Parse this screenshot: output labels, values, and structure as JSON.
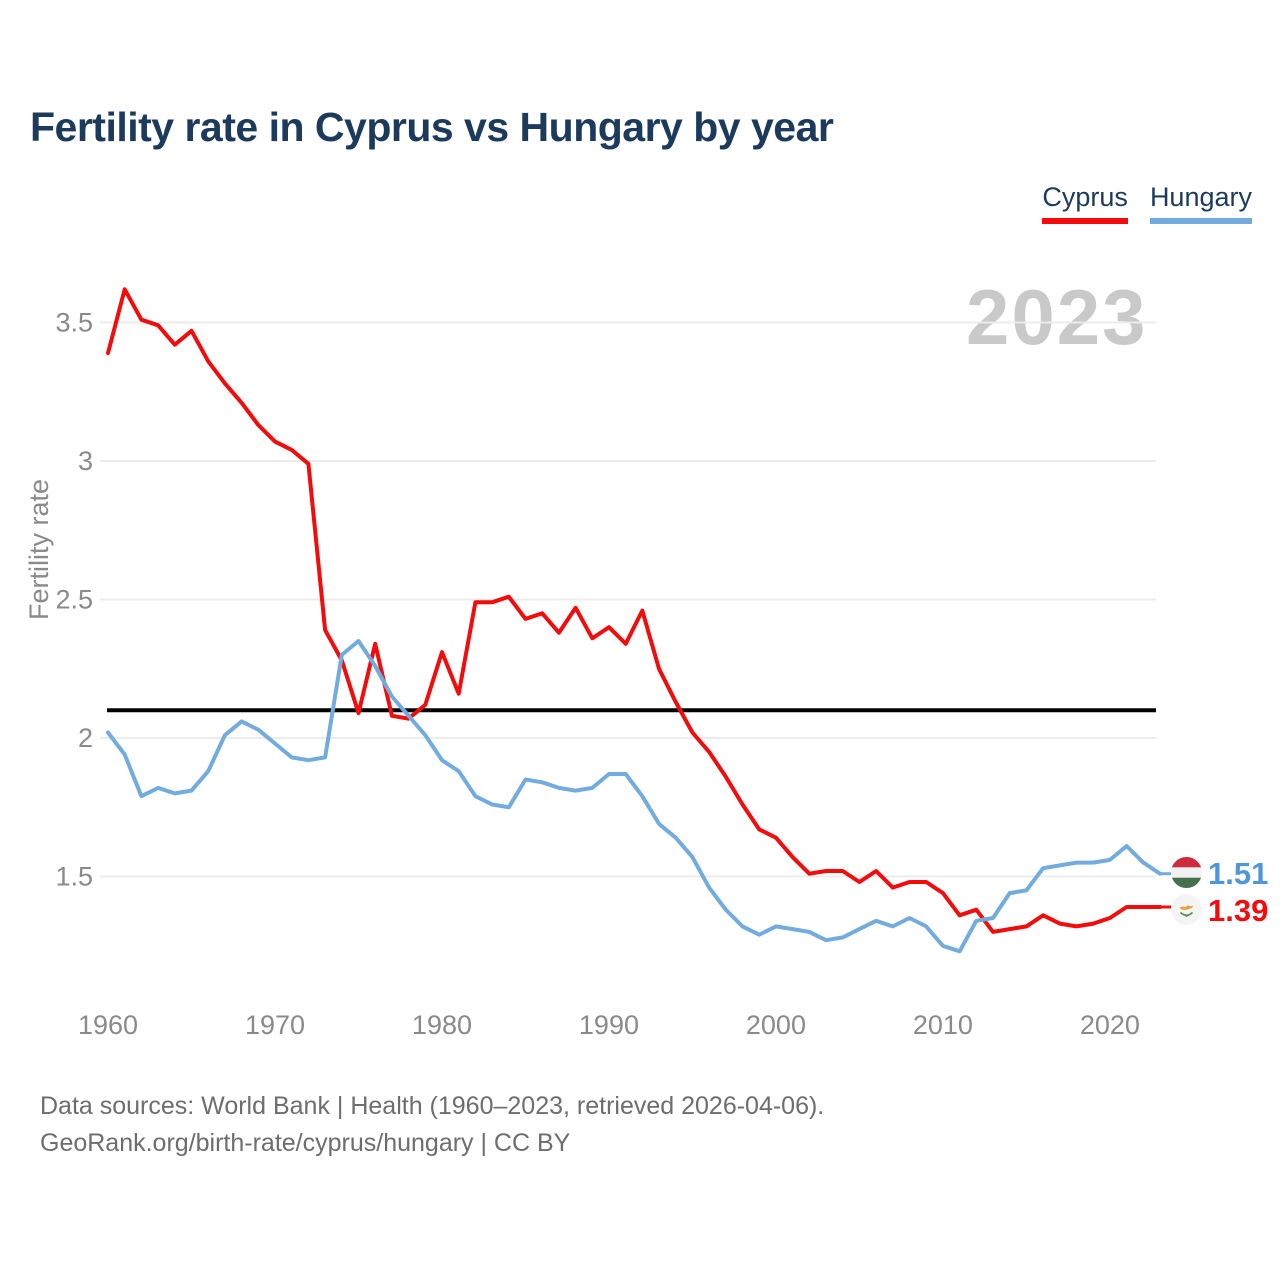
{
  "header": {
    "title": "Fertility rate in Cyprus vs Hungary by year"
  },
  "legend": {
    "items": [
      {
        "label": "Cyprus",
        "color": "#f40b0b"
      },
      {
        "label": "Hungary",
        "color": "#72acdf"
      }
    ]
  },
  "watermark": "2023",
  "axes": {
    "y_label": "Fertility rate"
  },
  "end_labels": [
    {
      "series": "Hungary",
      "value": "1.51",
      "color": "#4e97da",
      "flag": "hungary-flag-icon"
    },
    {
      "series": "Cyprus",
      "value": "1.39",
      "color": "#f40b0b",
      "flag": "cyprus-flag-icon"
    }
  ],
  "footer": {
    "line1": "Data sources: World Bank | Health (1960–2023, retrieved 2026-04-06).",
    "line2": "GeoRank.org/birth-rate/cyprus/hungary | CC BY"
  },
  "chart_data": {
    "type": "line",
    "title": "Fertility rate in Cyprus vs Hungary by year",
    "xlabel": "",
    "ylabel": "Fertility rate",
    "xlim": [
      1960,
      2023
    ],
    "ylim": [
      1.02,
      3.64
    ],
    "x_ticks": [
      1960,
      1970,
      1980,
      1990,
      2000,
      2010,
      2020
    ],
    "y_ticks": [
      1.5,
      2,
      2.5,
      3,
      3.5
    ],
    "grid": "horizontal",
    "legend_position": "top-right",
    "reference_line": {
      "value": 2.1,
      "color": "#000000"
    },
    "x": [
      1960,
      1961,
      1962,
      1963,
      1964,
      1965,
      1966,
      1967,
      1968,
      1969,
      1970,
      1971,
      1972,
      1973,
      1974,
      1975,
      1976,
      1977,
      1978,
      1979,
      1980,
      1981,
      1982,
      1983,
      1984,
      1985,
      1986,
      1987,
      1988,
      1989,
      1990,
      1991,
      1992,
      1993,
      1994,
      1995,
      1996,
      1997,
      1998,
      1999,
      2000,
      2001,
      2002,
      2003,
      2004,
      2005,
      2006,
      2007,
      2008,
      2009,
      2010,
      2011,
      2012,
      2013,
      2014,
      2015,
      2016,
      2017,
      2018,
      2019,
      2020,
      2021,
      2022,
      2023
    ],
    "series": [
      {
        "name": "Cyprus",
        "color": "#f40b0b",
        "values": [
          3.39,
          3.62,
          3.51,
          3.49,
          3.42,
          3.47,
          3.36,
          3.28,
          3.21,
          3.13,
          3.07,
          3.04,
          2.99,
          2.39,
          2.28,
          2.09,
          2.34,
          2.08,
          2.07,
          2.12,
          2.31,
          2.16,
          2.49,
          2.49,
          2.51,
          2.43,
          2.45,
          2.38,
          2.47,
          2.36,
          2.4,
          2.34,
          2.46,
          2.25,
          2.13,
          2.02,
          1.95,
          1.86,
          1.76,
          1.67,
          1.64,
          1.57,
          1.51,
          1.52,
          1.52,
          1.48,
          1.52,
          1.46,
          1.48,
          1.48,
          1.44,
          1.36,
          1.38,
          1.3,
          1.31,
          1.32,
          1.36,
          1.33,
          1.32,
          1.33,
          1.35,
          1.39,
          1.39,
          1.39
        ]
      },
      {
        "name": "Hungary",
        "color": "#72acdf",
        "values": [
          2.02,
          1.94,
          1.79,
          1.82,
          1.8,
          1.81,
          1.88,
          2.01,
          2.06,
          2.03,
          1.98,
          1.93,
          1.92,
          1.93,
          2.3,
          2.35,
          2.26,
          2.15,
          2.08,
          2.01,
          1.92,
          1.88,
          1.79,
          1.76,
          1.75,
          1.85,
          1.84,
          1.82,
          1.81,
          1.82,
          1.87,
          1.87,
          1.79,
          1.69,
          1.64,
          1.57,
          1.46,
          1.38,
          1.32,
          1.29,
          1.32,
          1.31,
          1.3,
          1.27,
          1.28,
          1.31,
          1.34,
          1.32,
          1.35,
          1.32,
          1.25,
          1.23,
          1.34,
          1.35,
          1.44,
          1.45,
          1.53,
          1.54,
          1.55,
          1.55,
          1.56,
          1.61,
          1.55,
          1.51
        ]
      }
    ]
  }
}
